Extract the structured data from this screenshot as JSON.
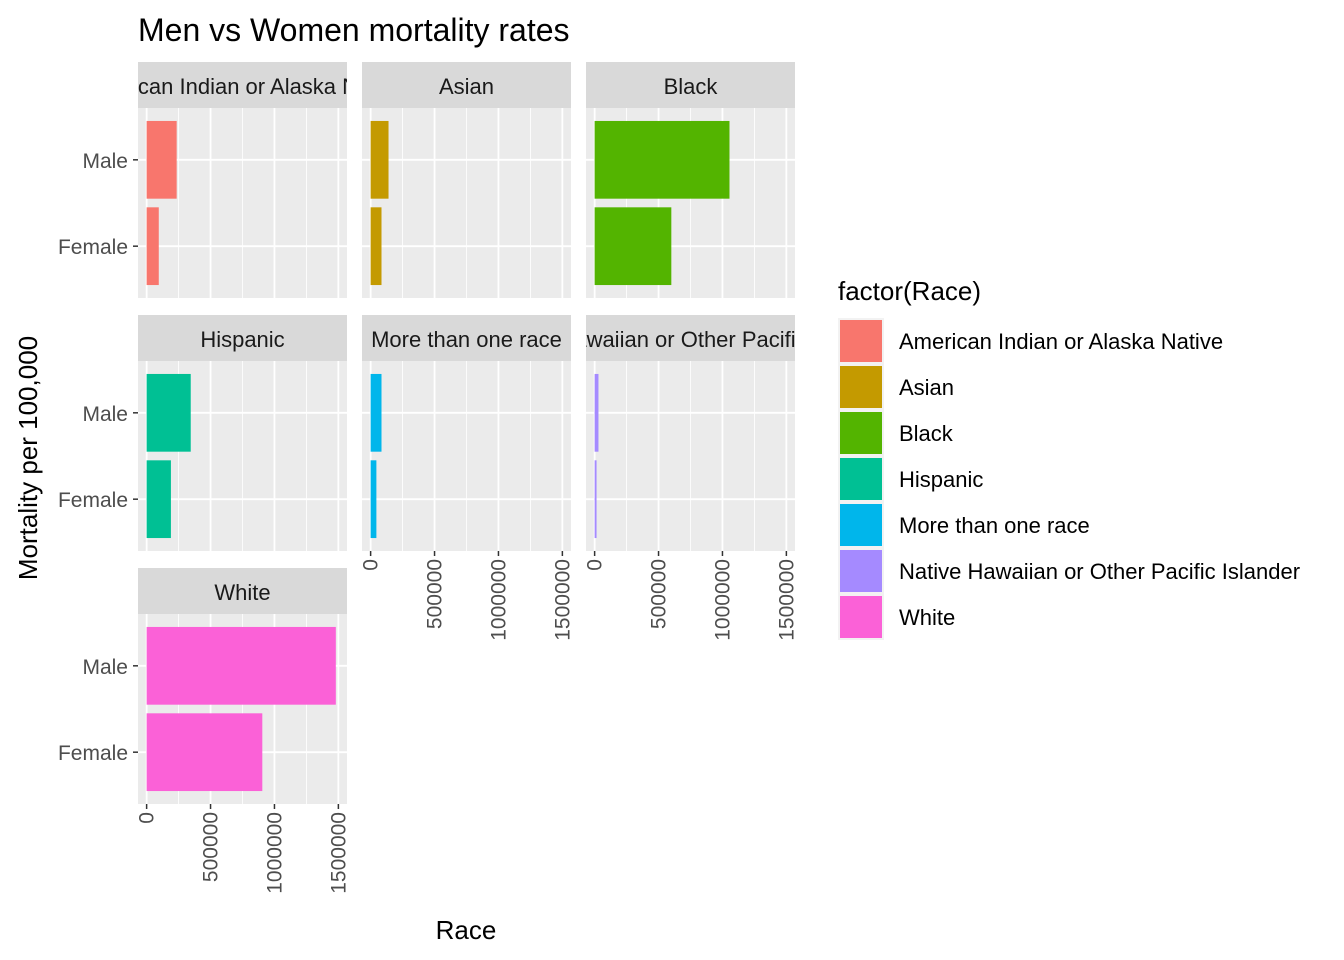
{
  "chart_data": {
    "type": "bar",
    "title": "Men vs Women mortality rates",
    "xlabel": "Race",
    "ylabel": "Mortality per 100,000",
    "categories": [
      "Male",
      "Female"
    ],
    "xlim": [
      0,
      1500000
    ],
    "x_ticks": [
      "0",
      "500000",
      "1000000",
      "1500000"
    ],
    "grid": true,
    "legend": {
      "title": "factor(Race)",
      "position": "right"
    },
    "panels": [
      {
        "name": "American Indian or Alaska Native",
        "strip_text": "American Indian or Alaska Native",
        "color": "#F8766D",
        "values": {
          "Male": 235000,
          "Female": 95000
        }
      },
      {
        "name": "Asian",
        "strip_text": "Asian",
        "color": "#C49A00",
        "values": {
          "Male": 140000,
          "Female": 85000
        }
      },
      {
        "name": "Black",
        "strip_text": "Black",
        "color": "#53B400",
        "values": {
          "Male": 1055000,
          "Female": 600000
        }
      },
      {
        "name": "Hispanic",
        "strip_text": "Hispanic",
        "color": "#00C094",
        "values": {
          "Male": 345000,
          "Female": 190000
        }
      },
      {
        "name": "More than one race",
        "strip_text": "More than one race",
        "color": "#00B6EB",
        "values": {
          "Male": 85000,
          "Female": 45000
        }
      },
      {
        "name": "Native Hawaiian or Other Pacific Islander",
        "strip_text": "Native Hawaiian or Other Pacific Islander",
        "color": "#A58AFF",
        "values": {
          "Male": 30000,
          "Female": 15000
        }
      },
      {
        "name": "White",
        "strip_text": "White",
        "color": "#FB61D7",
        "values": {
          "Male": 1480000,
          "Female": 905000
        }
      }
    ]
  },
  "colors": {
    "panel_background": "#EBEBEB",
    "strip_background": "#D9D9D9",
    "grid": "#FFFFFF",
    "tick": "#333333"
  }
}
